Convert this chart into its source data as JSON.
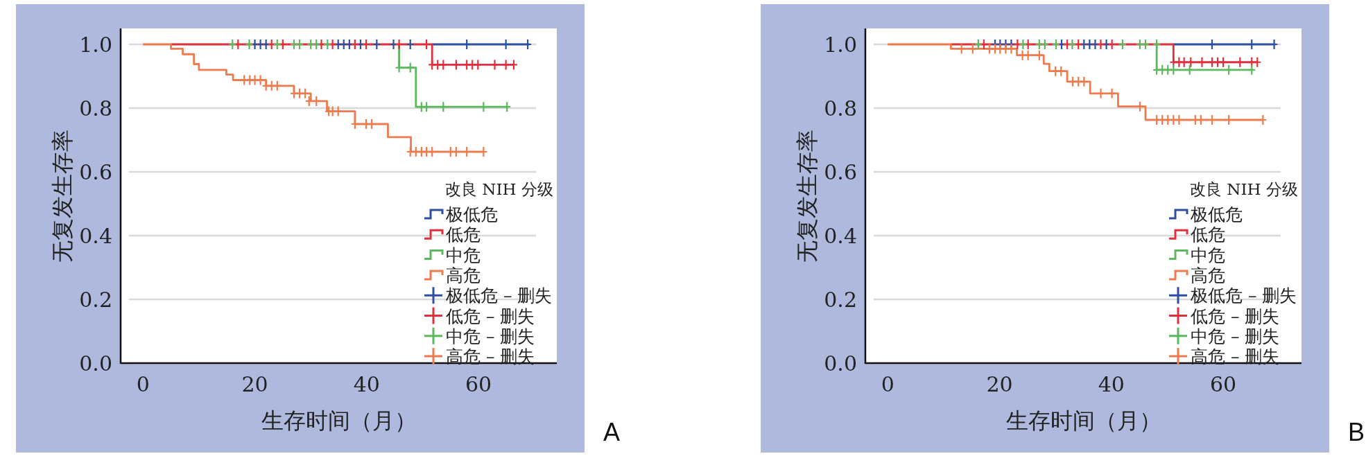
{
  "chart_data": [
    {
      "type": "step",
      "xlabel": "生存时间（月）",
      "ylabel": "无复发生存率",
      "legend_title": "改良 NIH 分级",
      "annotations": [
        "A"
      ],
      "xlim": [
        -4,
        74
      ],
      "ylim": [
        0,
        1.05
      ],
      "xticks": [
        0,
        20,
        40,
        60
      ],
      "yticks": [
        {
          "value": 0,
          "label": "0.0"
        },
        {
          "value": 0.2,
          "label": "0.2"
        },
        {
          "value": 0.4,
          "label": "0.4"
        },
        {
          "value": 0.6,
          "label": "0.6"
        },
        {
          "value": 0.8,
          "label": "0.8"
        },
        {
          "value": 1,
          "label": "1.0"
        }
      ],
      "grid": "y",
      "legend": "bottom right",
      "series": [
        {
          "name": "极低危",
          "color": "#2c4fa3",
          "x": [
            51.7,
            69.1
          ],
          "values": [
            1,
            1
          ]
        },
        {
          "name": "低危",
          "color": "#e0303d",
          "x": [
            5,
            51.7,
            66.3
          ],
          "values": [
            1,
            0.936,
            0.936
          ]
        },
        {
          "name": "中危",
          "color": "#5cb85c",
          "x": [
            45.8,
            45.8,
            48.8,
            65.1
          ],
          "values": [
            1,
            0.927,
            0.804,
            0.804
          ]
        },
        {
          "name": "高危",
          "color": "#ee7b4e",
          "x": [
            0,
            5,
            7.1,
            9.1,
            10,
            14.9,
            16.1,
            22,
            27,
            30,
            32.9,
            37.9,
            43.8,
            47.9,
            61
          ],
          "values": [
            1,
            0.986,
            0.969,
            0.938,
            0.92,
            0.905,
            0.888,
            0.87,
            0.846,
            0.822,
            0.79,
            0.75,
            0.709,
            0.663,
            0.663
          ]
        },
        {
          "name": "极低危 – 删失",
          "type": "scatter",
          "marker": "cross",
          "color": "#2c4fa3",
          "x": [
            20,
            21,
            22,
            34.9,
            35.9,
            36.9,
            38.9,
            41.8,
            44.8,
            47.8,
            57.9,
            64.9,
            68.8
          ],
          "values": [
            1,
            1,
            1,
            1,
            1,
            1,
            1,
            1,
            1,
            1,
            1,
            1,
            1
          ]
        },
        {
          "name": "低危 – 删失",
          "type": "scatter",
          "marker": "cross",
          "color": "#e0303d",
          "x": [
            17,
            23,
            25,
            31.9,
            33.9,
            37.9,
            39.9,
            45.8,
            50.7,
            51.7,
            52.7,
            53.7,
            56,
            57.9,
            58.9,
            59.9,
            62.9,
            64.9,
            66.3
          ],
          "values": [
            1,
            1,
            1,
            1,
            1,
            1,
            1,
            1,
            1,
            0.936,
            0.936,
            0.936,
            0.936,
            0.936,
            0.936,
            0.936,
            0.936,
            0.936,
            0.936
          ]
        },
        {
          "name": "中危 – 删失",
          "type": "scatter",
          "marker": "cross",
          "color": "#5cb85c",
          "x": [
            16,
            19,
            24,
            27,
            28,
            30,
            31,
            33,
            45.8,
            47.8,
            49.8,
            50.7,
            53.7,
            60.9,
            65.1
          ],
          "values": [
            1,
            1,
            1,
            1,
            1,
            1,
            1,
            1,
            0.927,
            0.927,
            0.804,
            0.804,
            0.804,
            0.804,
            0.804
          ]
        },
        {
          "name": "高危 – 删失",
          "type": "scatter",
          "marker": "cross",
          "color": "#ee7b4e",
          "x": [
            18.1,
            19.1,
            20,
            21,
            22,
            23,
            24,
            27,
            28,
            29,
            29.7,
            31,
            33.2,
            33.9,
            34.9,
            37.9,
            39.9,
            40.9,
            47.8,
            48.8,
            49.8,
            50.7,
            51.7,
            55,
            56,
            57.9,
            60.9
          ],
          "values": [
            0.888,
            0.888,
            0.888,
            0.888,
            0.87,
            0.87,
            0.87,
            0.846,
            0.846,
            0.846,
            0.822,
            0.822,
            0.79,
            0.79,
            0.79,
            0.75,
            0.75,
            0.75,
            0.663,
            0.663,
            0.663,
            0.663,
            0.663,
            0.663,
            0.663,
            0.663,
            0.663
          ]
        }
      ]
    },
    {
      "type": "step",
      "xlabel": "生存时间（月）",
      "ylabel": "无复发生存率",
      "legend_title": "改良 NIH 分级",
      "annotations": [
        "B"
      ],
      "xlim": [
        -4,
        74
      ],
      "ylim": [
        0,
        1.05
      ],
      "xticks": [
        0,
        20,
        40,
        60
      ],
      "yticks": [
        {
          "value": 0,
          "label": "0.0"
        },
        {
          "value": 0.2,
          "label": "0.2"
        },
        {
          "value": 0.4,
          "label": "0.4"
        },
        {
          "value": 0.6,
          "label": "0.6"
        },
        {
          "value": 0.8,
          "label": "0.8"
        },
        {
          "value": 1,
          "label": "1.0"
        }
      ],
      "grid": "y",
      "legend": "bottom right",
      "series": [
        {
          "name": "极低危",
          "color": "#2c4fa3",
          "x": [
            51.1,
            69.3
          ],
          "values": [
            1,
            1
          ]
        },
        {
          "name": "低危",
          "color": "#e0303d",
          "x": [
            11.3,
            51.1,
            66.1
          ],
          "values": [
            1,
            0.944,
            0.944
          ]
        },
        {
          "name": "中危",
          "color": "#5cb85c",
          "x": [
            48.1,
            48.1,
            65.3
          ],
          "values": [
            1,
            0.92,
            0.92
          ]
        },
        {
          "name": "高危",
          "color": "#ee7b4e",
          "x": [
            0,
            11.3,
            23.1,
            27.9,
            28.9,
            32.1,
            36.2,
            41.2,
            46.1,
            67.1
          ],
          "values": [
            1,
            0.986,
            0.966,
            0.939,
            0.916,
            0.883,
            0.846,
            0.805,
            0.763,
            0.763
          ]
        },
        {
          "name": "极低危 – 删失",
          "type": "scatter",
          "marker": "cross",
          "color": "#2c4fa3",
          "x": [
            19.2,
            20.1,
            21.1,
            22.1,
            31.1,
            35.1,
            36.1,
            37.1,
            39.1,
            58,
            65.1,
            69.1
          ],
          "values": [
            1,
            1,
            1,
            1,
            1,
            1,
            1,
            1,
            1,
            1,
            1,
            1
          ]
        },
        {
          "name": "低危 – 删失",
          "type": "scatter",
          "marker": "cross",
          "color": "#e0303d",
          "x": [
            17.2,
            23.2,
            25.1,
            32.1,
            34.1,
            38.1,
            40.1,
            51.1,
            52.1,
            53,
            54.2,
            56.2,
            58,
            59,
            60,
            63,
            65.1,
            66.1
          ],
          "values": [
            1,
            1,
            1,
            1,
            1,
            1,
            1,
            0.944,
            0.944,
            0.944,
            0.944,
            0.944,
            0.944,
            0.944,
            0.944,
            0.944,
            0.944,
            0.944
          ]
        },
        {
          "name": "中危 – 删失",
          "type": "scatter",
          "marker": "cross",
          "color": "#5cb85c",
          "x": [
            16.2,
            24.2,
            27.1,
            28.1,
            30.1,
            33,
            42,
            45.1,
            46.1,
            48.1,
            48.1,
            49.1,
            50.1,
            51.1,
            54,
            61,
            65.1
          ],
          "values": [
            1,
            1,
            1,
            1,
            1,
            1,
            1,
            1,
            1,
            1,
            0.92,
            0.92,
            0.92,
            0.92,
            0.92,
            0.92,
            0.92
          ]
        },
        {
          "name": "高危 – 删失",
          "type": "scatter",
          "marker": "cross",
          "color": "#ee7b4e",
          "x": [
            13.2,
            15.2,
            18.2,
            19.2,
            20.1,
            21.1,
            22.1,
            24.1,
            25.1,
            27.1,
            30,
            31,
            33.1,
            34.1,
            35.1,
            38.1,
            40.1,
            45.1,
            48.1,
            49.1,
            50.1,
            51.1,
            52.1,
            55,
            56,
            58,
            61,
            67.1
          ],
          "values": [
            0.986,
            0.986,
            0.986,
            0.986,
            0.986,
            0.986,
            0.986,
            0.966,
            0.966,
            0.966,
            0.916,
            0.916,
            0.883,
            0.883,
            0.883,
            0.846,
            0.846,
            0.805,
            0.763,
            0.763,
            0.763,
            0.763,
            0.763,
            0.763,
            0.763,
            0.763,
            0.763,
            0.763
          ]
        }
      ]
    }
  ]
}
